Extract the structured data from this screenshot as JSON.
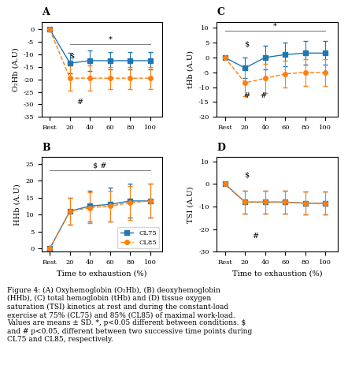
{
  "chart_data": [
    {
      "type": "line",
      "title": "A",
      "y_label": "O₂Hb (A.U)",
      "x": [
        0,
        20,
        40,
        60,
        80,
        100
      ],
      "xlim": [
        -8,
        112
      ],
      "xticks": [
        {
          "value": 0,
          "label": "Rest"
        },
        20,
        40,
        60,
        80,
        100
      ],
      "ylim": [
        -35,
        3
      ],
      "yticks": [
        0,
        -5,
        -10,
        -15,
        -20,
        -25,
        -30,
        -35
      ],
      "series": [
        {
          "name": "CL75",
          "marker": "square",
          "line_style": "solid",
          "values": [
            0,
            -13.5,
            -12.5,
            -12.5,
            -12.5,
            -12.5
          ],
          "errors": [
            0,
            4.0,
            4.0,
            3.5,
            3.5,
            3.5
          ]
        },
        {
          "name": "CL85",
          "marker": "circle",
          "line_style": "dashed",
          "values": [
            0,
            -19.5,
            -19.5,
            -19.5,
            -19.5,
            -19.5
          ],
          "errors": [
            0,
            5.0,
            5.0,
            4.5,
            4.5,
            4.5
          ]
        }
      ],
      "significance": [
        {
          "text": "*",
          "x1": 20,
          "x2": 100,
          "y": -6
        }
      ],
      "annotations": [
        {
          "text": "$",
          "x": 22,
          "y": -10.5
        },
        {
          "text": "#",
          "x": 30,
          "y": -29
        }
      ]
    },
    {
      "type": "line",
      "title": "B",
      "y_label": "HHb (A.U)",
      "x_label": "Time to exhaustion (%)",
      "x": [
        0,
        20,
        40,
        60,
        80,
        100
      ],
      "xlim": [
        -8,
        112
      ],
      "xticks": [
        {
          "value": 0,
          "label": "Rest"
        },
        20,
        40,
        60,
        80,
        100
      ],
      "ylim": [
        -1,
        27
      ],
      "yticks": [
        0,
        5,
        10,
        15,
        20,
        25
      ],
      "series": [
        {
          "name": "CL75",
          "marker": "square",
          "line_style": "solid",
          "values": [
            0,
            11.0,
            12.5,
            13.0,
            14.0,
            14.0
          ],
          "errors": [
            0,
            4.0,
            4.5,
            5.0,
            5.0,
            5.0
          ]
        },
        {
          "name": "CL85",
          "marker": "circle",
          "line_style": "dashed",
          "values": [
            0,
            11.0,
            12.0,
            12.5,
            13.5,
            14.0
          ],
          "errors": [
            0,
            4.0,
            4.5,
            4.5,
            5.0,
            5.0
          ]
        }
      ],
      "significance": [
        {
          "text": "$ #",
          "x1": 0,
          "x2": 100,
          "y": 23
        }
      ],
      "annotations": [],
      "legend": "lower right"
    },
    {
      "type": "line",
      "title": "C",
      "y_label": "tHb (A.U)",
      "x": [
        0,
        20,
        40,
        60,
        80,
        100
      ],
      "xlim": [
        -8,
        112
      ],
      "xticks": [
        {
          "value": 0,
          "label": "Rest"
        },
        20,
        40,
        60,
        80,
        100
      ],
      "ylim": [
        -20,
        12
      ],
      "yticks": [
        10,
        5,
        0,
        -5,
        -10,
        -15,
        -20
      ],
      "series": [
        {
          "name": "CL75",
          "marker": "square",
          "line_style": "solid",
          "values": [
            0,
            -3.5,
            0,
            1,
            1.5,
            1.5
          ],
          "errors": [
            0,
            3.5,
            4.0,
            4.0,
            4.0,
            4.0
          ]
        },
        {
          "name": "CL85",
          "marker": "circle",
          "line_style": "dashed",
          "values": [
            0,
            -8.5,
            -7.0,
            -5.5,
            -5.0,
            -5.0
          ],
          "errors": [
            0,
            4.5,
            5.0,
            4.5,
            4.5,
            4.5
          ]
        }
      ],
      "significance": [
        {
          "text": "*",
          "x1": 0,
          "x2": 100,
          "y": 9
        }
      ],
      "annotations": [
        {
          "text": "$",
          "x": 22,
          "y": 4.5
        },
        {
          "text": "#",
          "x": 22,
          "y": -13
        },
        {
          "text": "#",
          "x": 38,
          "y": -13
        }
      ]
    },
    {
      "type": "line",
      "title": "D",
      "y_label": "TSI (A.U)",
      "x_label": "Time to exhaustion (%)",
      "x": [
        0,
        20,
        40,
        60,
        80,
        100
      ],
      "xlim": [
        -8,
        112
      ],
      "xticks": [
        {
          "value": 0,
          "label": "Rest"
        },
        20,
        40,
        60,
        80,
        100
      ],
      "ylim": [
        -30,
        12
      ],
      "yticks": [
        10,
        0,
        -10,
        -20,
        -30
      ],
      "series": [
        {
          "name": "CL75",
          "marker": "square",
          "line_style": "solid",
          "values": [
            0,
            -8.0,
            -8.0,
            -8.0,
            -8.5,
            -8.5
          ],
          "errors": [
            0,
            5.0,
            5.0,
            5.0,
            5.0,
            5.0
          ]
        },
        {
          "name": "CL85",
          "marker": "circle",
          "line_style": "dashed",
          "values": [
            0,
            -8.0,
            -8.0,
            -8.0,
            -8.5,
            -8.5
          ],
          "errors": [
            0,
            5.0,
            5.0,
            5.0,
            5.0,
            5.0
          ]
        }
      ],
      "significance": [],
      "annotations": [
        {
          "text": "$",
          "x": 22,
          "y": 4
        },
        {
          "text": "#",
          "x": 30,
          "y": -23
        }
      ]
    }
  ],
  "caption": "Figure 4: (A) Oxyhemoglobin (O₂Hb), (B) deoxyhemoglobin\n(HHb), (C) total hemoglobin (tHb) and (D) tissue oxygen\nsaturation (TSI) kinetics at rest and during the constant-load\nexercise at 75% (CL75) and 85% (CL85) of maximal work-load.\nValues are means ± SD. *, p<0.05 different between conditions. $\nand # p<0.05, different between two successive time points during\nCL75 and CL85, respectively."
}
